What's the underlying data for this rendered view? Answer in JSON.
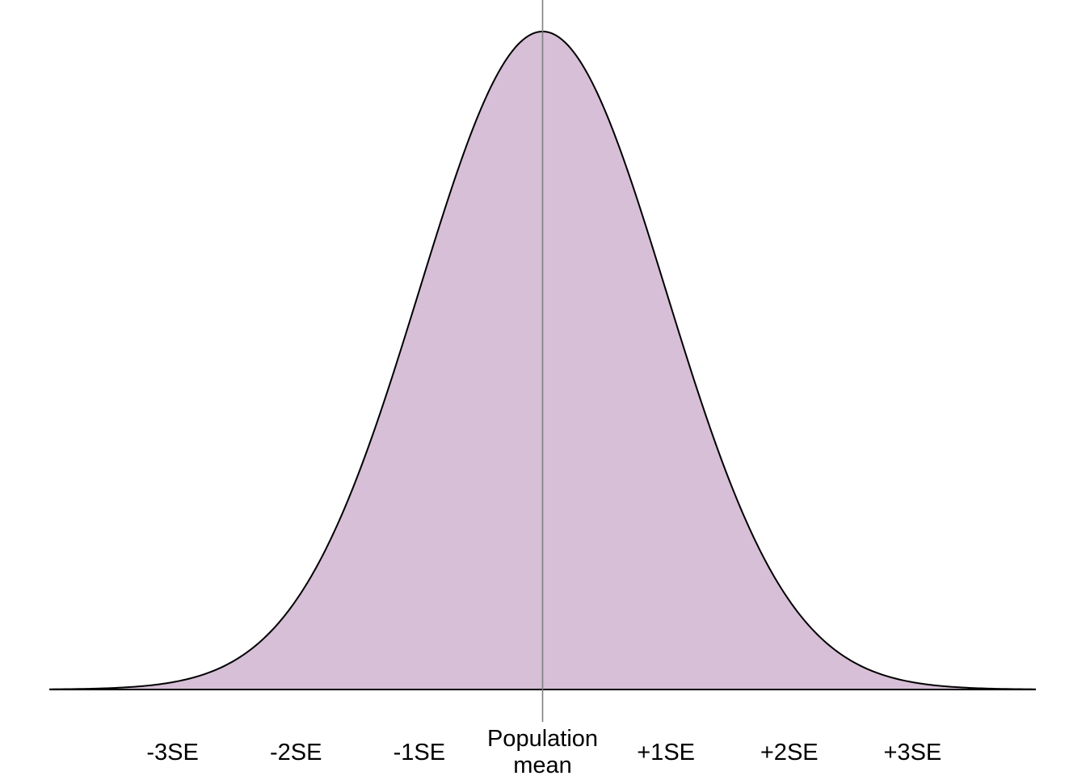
{
  "chart_data": {
    "type": "area",
    "title": "",
    "xlabel": "",
    "ylabel": "",
    "distribution": "normal",
    "mean": 0,
    "sd": 1,
    "xlim": [
      -4,
      4
    ],
    "ticks": [
      {
        "x": -3,
        "label": "-3SE"
      },
      {
        "x": -2,
        "label": "-2SE"
      },
      {
        "x": -1,
        "label": "-1SE"
      },
      {
        "x": 0,
        "label": "Population",
        "label2": "mean"
      },
      {
        "x": 1,
        "label": "+1SE"
      },
      {
        "x": 2,
        "label": "+2SE"
      },
      {
        "x": 3,
        "label": "+3SE"
      }
    ],
    "reference_line": {
      "x": 0
    },
    "grid": false,
    "legend": "none",
    "colors": {
      "fill": "#d6bfd7",
      "curve": "#000000",
      "reference_line": "#808080",
      "baseline": "#000000"
    }
  }
}
